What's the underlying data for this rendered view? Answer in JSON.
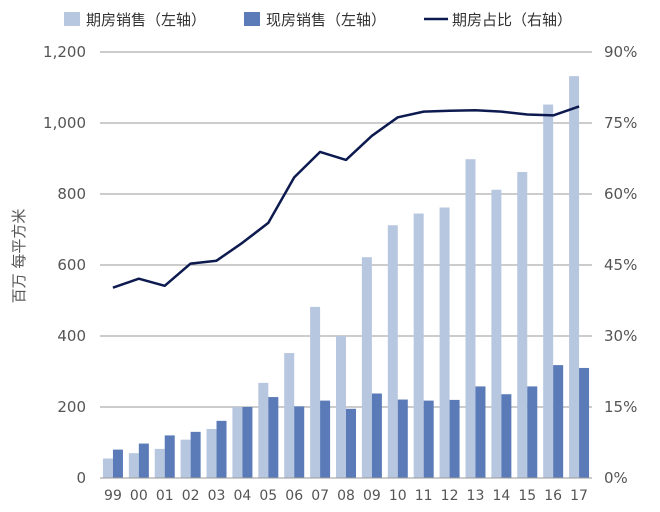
{
  "chart_data": {
    "type": "bar",
    "categories": [
      "99",
      "00",
      "01",
      "02",
      "03",
      "04",
      "05",
      "06",
      "07",
      "08",
      "09",
      "10",
      "11",
      "12",
      "13",
      "14",
      "15",
      "16",
      "17"
    ],
    "series": [
      {
        "name": "期房销售（左轴）",
        "axis": "left",
        "kind": "bar",
        "color": "#b8c7e0",
        "values": [
          55,
          70,
          82,
          108,
          138,
          200,
          268,
          352,
          482,
          400,
          622,
          712,
          745,
          762,
          898,
          812,
          862,
          1052,
          1132
        ]
      },
      {
        "name": "现房销售（左轴）",
        "axis": "left",
        "kind": "bar",
        "color": "#5a7ab8",
        "values": [
          80,
          97,
          120,
          130,
          161,
          200,
          228,
          202,
          218,
          195,
          238,
          221,
          218,
          220,
          258,
          236,
          258,
          318,
          310
        ]
      },
      {
        "name": "期房占比（右轴）",
        "axis": "right",
        "kind": "line",
        "color": "#0d1a4f",
        "values": [
          40.2,
          42.1,
          40.6,
          45.3,
          45.9,
          49.7,
          53.9,
          63.5,
          68.9,
          67.2,
          72.3,
          76.2,
          77.4,
          77.6,
          77.7,
          77.4,
          76.8,
          76.6,
          78.5
        ]
      }
    ],
    "ylabel": "百万 每平方米",
    "left_axis": {
      "ylim": [
        0,
        1200
      ],
      "ticks": [
        "0",
        "200",
        "400",
        "600",
        "800",
        "1,000",
        "1,200"
      ],
      "tick_values": [
        0,
        200,
        400,
        600,
        800,
        1000,
        1200
      ]
    },
    "right_axis": {
      "ylim": [
        0,
        90
      ],
      "ticks": [
        "0%",
        "15%",
        "30%",
        "45%",
        "60%",
        "75%",
        "90%"
      ],
      "tick_values": [
        0,
        15,
        30,
        45,
        60,
        75,
        90
      ]
    },
    "grid": true,
    "legend_position": "top"
  }
}
